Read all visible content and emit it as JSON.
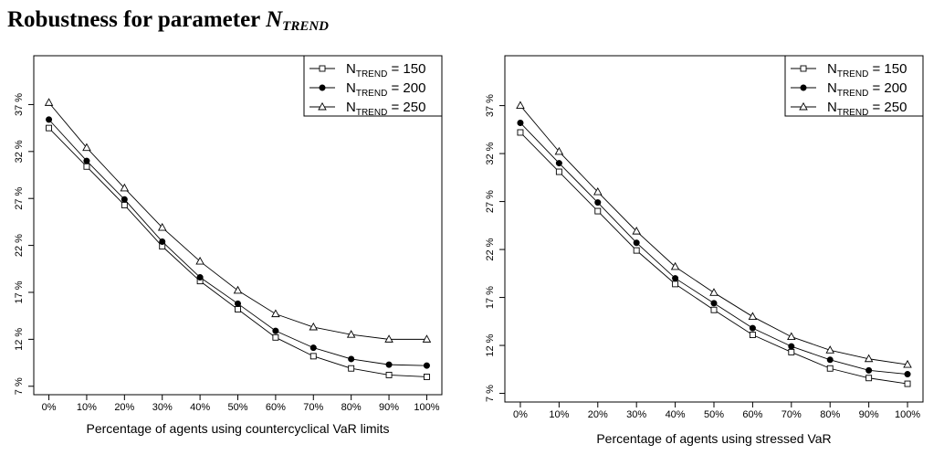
{
  "title": {
    "prefix": "Robustness for parameter ",
    "symbol": "N",
    "subscript": "TREND"
  },
  "colors": {
    "line": "#000000",
    "open_marker_fill": "#ffffff",
    "filled_marker": "#000000"
  },
  "chart_data": [
    {
      "type": "line",
      "xlabel": "Percentage of agents using countercyclical VaR limits",
      "ylabel": "",
      "categories": [
        "0%",
        "10%",
        "20%",
        "30%",
        "40%",
        "50%",
        "60%",
        "70%",
        "80%",
        "90%",
        "100%"
      ],
      "x": [
        0,
        10,
        20,
        30,
        40,
        50,
        60,
        70,
        80,
        90,
        100
      ],
      "xlim": [
        -4,
        104
      ],
      "yticks": [
        7,
        12,
        17,
        22,
        27,
        32,
        37
      ],
      "ytick_labels": [
        "7 %",
        "12 %",
        "17 %",
        "22 %",
        "27 %",
        "32 %",
        "37 %"
      ],
      "ylim": [
        6.1,
        42.2
      ],
      "grid": false,
      "legend_position": "top-right",
      "series": [
        {
          "name": "150",
          "label_main": "N",
          "label_sub": "TREND",
          "label_suffix": " = 150",
          "marker": "square",
          "values": [
            34.5,
            30.4,
            26.3,
            21.9,
            18.2,
            15.2,
            12.2,
            10.2,
            8.9,
            8.2,
            8.0
          ]
        },
        {
          "name": "200",
          "label_main": "N",
          "label_sub": "TREND",
          "label_suffix": " = 200",
          "marker": "filled-circle",
          "values": [
            35.4,
            31.0,
            26.9,
            22.4,
            18.6,
            15.8,
            12.9,
            11.1,
            9.9,
            9.3,
            9.2
          ]
        },
        {
          "name": "250",
          "label_main": "N",
          "label_sub": "TREND",
          "label_suffix": " = 250",
          "marker": "triangle",
          "values": [
            37.2,
            32.4,
            28.1,
            23.9,
            20.3,
            17.2,
            14.7,
            13.3,
            12.5,
            12.0,
            12.0
          ]
        }
      ]
    },
    {
      "type": "line",
      "xlabel": "Percentage of agents using stressed VaR",
      "ylabel": "",
      "categories": [
        "0%",
        "10%",
        "20%",
        "30%",
        "40%",
        "50%",
        "60%",
        "70%",
        "80%",
        "90%",
        "100%"
      ],
      "x": [
        0,
        10,
        20,
        30,
        40,
        50,
        60,
        70,
        80,
        90,
        100
      ],
      "xlim": [
        -4,
        104
      ],
      "yticks": [
        7,
        12,
        17,
        22,
        27,
        32,
        37
      ],
      "ytick_labels": [
        "7 %",
        "12 %",
        "17 %",
        "22 %",
        "27 %",
        "32 %",
        "37 %"
      ],
      "ylim": [
        6.1,
        42.2
      ],
      "grid": false,
      "legend_position": "top-right",
      "series": [
        {
          "name": "150",
          "label_main": "N",
          "label_sub": "TREND",
          "label_suffix": " = 150",
          "marker": "square",
          "values": [
            34.2,
            30.1,
            26.0,
            21.9,
            18.4,
            15.7,
            13.1,
            11.3,
            9.6,
            8.6,
            8.0
          ]
        },
        {
          "name": "200",
          "label_main": "N",
          "label_sub": "TREND",
          "label_suffix": " = 200",
          "marker": "filled-circle",
          "values": [
            35.2,
            31.0,
            26.9,
            22.7,
            19.0,
            16.4,
            13.8,
            11.9,
            10.5,
            9.4,
            9.0
          ]
        },
        {
          "name": "250",
          "label_main": "N",
          "label_sub": "TREND",
          "label_suffix": " = 250",
          "marker": "triangle",
          "values": [
            37.0,
            32.2,
            28.0,
            23.9,
            20.2,
            17.5,
            15.0,
            12.9,
            11.5,
            10.6,
            10.0
          ]
        }
      ]
    }
  ]
}
